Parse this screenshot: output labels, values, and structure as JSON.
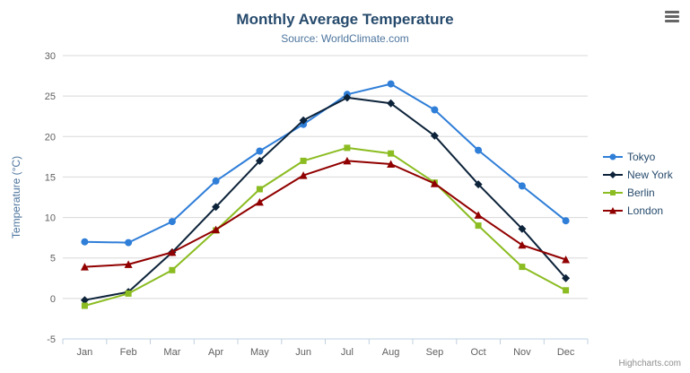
{
  "title": "Monthly Average Temperature",
  "subtitle": "Source: WorldClimate.com",
  "yaxis_title": "Temperature (°C)",
  "credits": "Highcharts.com",
  "icons": {
    "context_menu": "hamburger-icon"
  },
  "colors": {
    "title": "#274b6d",
    "subtitle": "#4d759e",
    "axis_labels": "#606060",
    "gridline": "#d8d8d8",
    "axis_line": "#c0d0e0",
    "legend_text": "#274b6d",
    "credits_text": "#909090"
  },
  "chart_data": {
    "type": "line",
    "title": "Monthly Average Temperature",
    "subtitle": "Source: WorldClimate.com",
    "xlabel": "",
    "ylabel": "Temperature (°C)",
    "ylim": [
      -5,
      30
    ],
    "ytick_interval": 5,
    "grid": true,
    "legend_position": "right",
    "categories": [
      "Jan",
      "Feb",
      "Mar",
      "Apr",
      "May",
      "Jun",
      "Jul",
      "Aug",
      "Sep",
      "Oct",
      "Nov",
      "Dec"
    ],
    "series": [
      {
        "name": "Tokyo",
        "color": "#2f7ed8",
        "marker": "circle",
        "values": [
          7.0,
          6.9,
          9.5,
          14.5,
          18.2,
          21.5,
          25.2,
          26.5,
          23.3,
          18.3,
          13.9,
          9.6
        ]
      },
      {
        "name": "New York",
        "color": "#0d233a",
        "marker": "diamond",
        "values": [
          -0.2,
          0.8,
          5.7,
          11.3,
          17.0,
          22.0,
          24.8,
          24.1,
          20.1,
          14.1,
          8.6,
          2.5
        ]
      },
      {
        "name": "Berlin",
        "color": "#8bbc21",
        "marker": "square",
        "values": [
          -0.9,
          0.6,
          3.5,
          8.4,
          13.5,
          17.0,
          18.6,
          17.9,
          14.3,
          9.0,
          3.9,
          1.0
        ]
      },
      {
        "name": "London",
        "color": "#910000",
        "marker": "triangle",
        "values": [
          3.9,
          4.2,
          5.7,
          8.5,
          11.9,
          15.2,
          17.0,
          16.6,
          14.2,
          10.3,
          6.6,
          4.8
        ]
      }
    ]
  }
}
